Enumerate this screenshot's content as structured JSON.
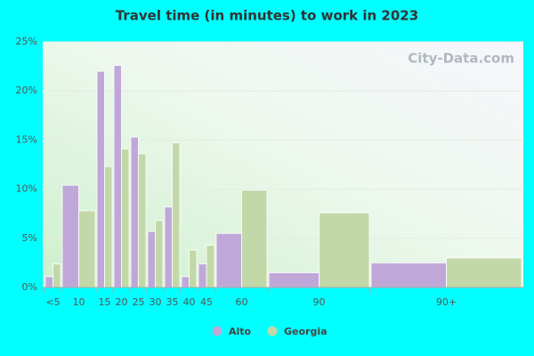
{
  "chart_data": {
    "type": "bar",
    "title": "Travel time (in minutes) to work in 2023",
    "watermark": "City-Data.com",
    "categories": [
      "<5",
      "10",
      "15",
      "20",
      "25",
      "30",
      "35",
      "40",
      "45",
      "60",
      "90",
      "90+"
    ],
    "series": [
      {
        "name": "Alto",
        "color": "#bfa8d8",
        "values": [
          1.1,
          10.4,
          22.0,
          22.6,
          15.3,
          5.7,
          8.2,
          1.1,
          2.4,
          5.5,
          1.5,
          2.5
        ]
      },
      {
        "name": "Georgia",
        "color": "#c3d8a8",
        "values": [
          2.4,
          7.8,
          12.3,
          14.1,
          13.6,
          6.8,
          14.7,
          3.8,
          4.3,
          9.9,
          7.6,
          3.0
        ]
      }
    ],
    "ylim": [
      0,
      25
    ],
    "yticks": [
      {
        "value": 0,
        "label": "0%"
      },
      {
        "value": 5,
        "label": "5%"
      },
      {
        "value": 10,
        "label": "10%"
      },
      {
        "value": 15,
        "label": "15%"
      },
      {
        "value": 20,
        "label": "20%"
      },
      {
        "value": 25,
        "label": "25%"
      }
    ],
    "grid": true
  }
}
